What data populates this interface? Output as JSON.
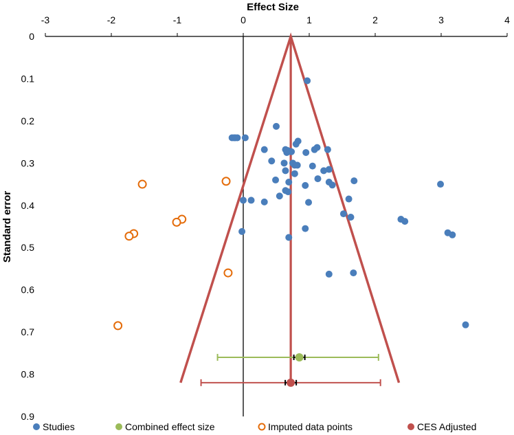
{
  "chart_data": {
    "type": "scatter",
    "title": "",
    "xlabel": "Effect Size",
    "ylabel": "Standard error",
    "xlim": [
      -3,
      4
    ],
    "ylim": [
      0,
      0.9
    ],
    "y_inverted": true,
    "x_ticks": [
      "-3",
      "-2",
      "-1",
      "0",
      "1",
      "2",
      "3",
      "4"
    ],
    "x_tick_values": [
      -3,
      -2,
      -1,
      0,
      1,
      2,
      3,
      4
    ],
    "y_ticks": [
      "0",
      "0.1",
      "0.2",
      "0.3",
      "0.4",
      "0.5",
      "0.6",
      "0.7",
      "0.8",
      "0.9"
    ],
    "y_tick_values": [
      0,
      0.1,
      0.2,
      0.3,
      0.4,
      0.5,
      0.6,
      0.7,
      0.8,
      0.9
    ],
    "legend_position": "bottom",
    "colors": {
      "studies": "#4a7ebb",
      "combined": "#9bbb59",
      "imputed": "#e46c0a",
      "ces_adjusted": "#c0504d",
      "axis": "#000000"
    },
    "series": [
      {
        "name": "Studies",
        "points": [
          [
            0.97,
            0.105
          ],
          [
            0.5,
            0.213
          ],
          [
            -0.17,
            0.24
          ],
          [
            -0.14,
            0.24
          ],
          [
            -0.12,
            0.24
          ],
          [
            -0.09,
            0.24
          ],
          [
            0.03,
            0.24
          ],
          [
            0.83,
            0.248
          ],
          [
            0.8,
            0.255
          ],
          [
            1.12,
            0.263
          ],
          [
            1.08,
            0.268
          ],
          [
            1.28,
            0.268
          ],
          [
            0.32,
            0.268
          ],
          [
            0.64,
            0.268
          ],
          [
            0.67,
            0.27
          ],
          [
            0.7,
            0.272
          ],
          [
            0.73,
            0.273
          ],
          [
            0.66,
            0.275
          ],
          [
            0.95,
            0.275
          ],
          [
            0.43,
            0.295
          ],
          [
            0.62,
            0.3
          ],
          [
            0.75,
            0.3
          ],
          [
            1.05,
            0.307
          ],
          [
            0.78,
            0.305
          ],
          [
            0.82,
            0.305
          ],
          [
            1.22,
            0.318
          ],
          [
            1.3,
            0.315
          ],
          [
            0.64,
            0.318
          ],
          [
            0.78,
            0.325
          ],
          [
            1.13,
            0.337
          ],
          [
            0.49,
            0.34
          ],
          [
            1.3,
            0.345
          ],
          [
            0.69,
            0.345
          ],
          [
            1.35,
            0.352
          ],
          [
            1.68,
            0.342
          ],
          [
            0.94,
            0.353
          ],
          [
            0.64,
            0.365
          ],
          [
            0.68,
            0.368
          ],
          [
            0.55,
            0.378
          ],
          [
            1.6,
            0.385
          ],
          [
            0,
            0.388
          ],
          [
            0.12,
            0.388
          ],
          [
            0.32,
            0.392
          ],
          [
            0.99,
            0.393
          ],
          [
            1.52,
            0.42
          ],
          [
            1.63,
            0.428
          ],
          [
            2.39,
            0.433
          ],
          [
            2.45,
            0.438
          ],
          [
            0.94,
            0.455
          ],
          [
            -0.02,
            0.462
          ],
          [
            0.69,
            0.476
          ],
          [
            3.1,
            0.465
          ],
          [
            3.17,
            0.47
          ],
          [
            2.99,
            0.35
          ],
          [
            1.3,
            0.563
          ],
          [
            1.67,
            0.56
          ],
          [
            3.37,
            0.683
          ]
        ]
      },
      {
        "name": "Imputed data points",
        "points": [
          [
            -1.53,
            0.35
          ],
          [
            -0.26,
            0.343
          ],
          [
            -0.93,
            0.433
          ],
          [
            -1.01,
            0.44
          ],
          [
            -1.66,
            0.467
          ],
          [
            -1.73,
            0.473
          ],
          [
            -0.23,
            0.56
          ],
          [
            -1.9,
            0.685
          ]
        ]
      },
      {
        "name": "Combined effect size",
        "estimate": 0.85,
        "se": 0.76,
        "ci": [
          -0.39,
          2.05
        ]
      },
      {
        "name": "CES Adjusted",
        "estimate": 0.72,
        "se": 0.82,
        "ci": [
          -0.64,
          2.08
        ],
        "funnel": {
          "apex": [
            0.72,
            0
          ],
          "bottom_left": [
            -0.95,
            0.82
          ],
          "bottom_right": [
            2.36,
            0.82
          ]
        },
        "vertical_line_x": 0.72
      }
    ],
    "legend": [
      "Studies",
      "Combined effect size",
      "Imputed data points",
      "CES Adjusted"
    ]
  }
}
